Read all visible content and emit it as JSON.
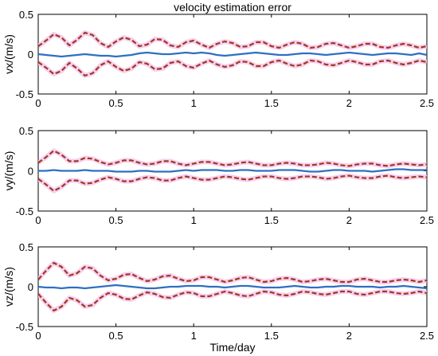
{
  "figure": {
    "title": "velocity estimation error",
    "xlabel": "Time/day"
  },
  "colors": {
    "estimate": "#2e6fc2",
    "bound": "#a0381c",
    "bound_halo": "#f4c9ef",
    "axis": "#000000"
  },
  "chart_data": [
    {
      "type": "line",
      "ylabel": "vx/(m/s)",
      "xlim": [
        0,
        2.5
      ],
      "ylim": [
        -0.5,
        0.5
      ],
      "xticks": [
        "0",
        "0.5",
        "1",
        "1.5",
        "2",
        "2.5"
      ],
      "yticks": [
        "0.5",
        "0",
        "-0.5"
      ],
      "grid": false,
      "x": [
        0,
        0.05,
        0.1,
        0.15,
        0.2,
        0.25,
        0.3,
        0.35,
        0.4,
        0.45,
        0.5,
        0.55,
        0.6,
        0.65,
        0.7,
        0.75,
        0.8,
        0.85,
        0.9,
        0.95,
        1.0,
        1.05,
        1.1,
        1.15,
        1.2,
        1.25,
        1.3,
        1.35,
        1.4,
        1.45,
        1.5,
        1.55,
        1.6,
        1.65,
        1.7,
        1.75,
        1.8,
        1.85,
        1.9,
        1.95,
        2.0,
        2.05,
        2.1,
        2.15,
        2.2,
        2.25,
        2.3,
        2.35,
        2.4,
        2.45,
        2.5
      ],
      "series": [
        {
          "role": "estimate",
          "values": [
            0.0,
            -0.01,
            -0.02,
            -0.03,
            -0.02,
            -0.01,
            0.0,
            -0.01,
            -0.02,
            -0.02,
            -0.03,
            -0.02,
            -0.01,
            0.01,
            0.02,
            0.01,
            0.0,
            0.0,
            0.01,
            0.02,
            0.01,
            0.02,
            0.01,
            -0.01,
            -0.02,
            -0.01,
            0.0,
            0.01,
            0.02,
            0.01,
            0.0,
            -0.01,
            -0.01,
            0.0,
            0.01,
            0.01,
            0.0,
            -0.01,
            0.0,
            0.01,
            0.02,
            0.01,
            0.0,
            -0.01,
            0.0,
            0.01,
            0.01,
            0.0,
            -0.01,
            0.01,
            -0.01
          ]
        },
        {
          "role": "upper-bound",
          "values": [
            0.1,
            0.17,
            0.25,
            0.21,
            0.11,
            0.18,
            0.27,
            0.24,
            0.14,
            0.09,
            0.16,
            0.21,
            0.18,
            0.1,
            0.12,
            0.19,
            0.18,
            0.11,
            0.09,
            0.15,
            0.17,
            0.12,
            0.08,
            0.13,
            0.16,
            0.14,
            0.09,
            0.1,
            0.15,
            0.15,
            0.1,
            0.08,
            0.12,
            0.15,
            0.13,
            0.08,
            0.09,
            0.13,
            0.14,
            0.11,
            0.08,
            0.1,
            0.13,
            0.13,
            0.09,
            0.08,
            0.11,
            0.13,
            0.11,
            0.08,
            0.1
          ]
        },
        {
          "role": "lower-bound",
          "values": [
            -0.1,
            -0.17,
            -0.25,
            -0.21,
            -0.11,
            -0.18,
            -0.27,
            -0.24,
            -0.14,
            -0.09,
            -0.16,
            -0.21,
            -0.18,
            -0.1,
            -0.12,
            -0.19,
            -0.18,
            -0.11,
            -0.09,
            -0.15,
            -0.17,
            -0.12,
            -0.08,
            -0.13,
            -0.16,
            -0.14,
            -0.09,
            -0.1,
            -0.15,
            -0.15,
            -0.1,
            -0.08,
            -0.12,
            -0.15,
            -0.13,
            -0.08,
            -0.09,
            -0.13,
            -0.14,
            -0.11,
            -0.08,
            -0.1,
            -0.13,
            -0.13,
            -0.09,
            -0.08,
            -0.11,
            -0.13,
            -0.11,
            -0.08,
            -0.1
          ]
        }
      ]
    },
    {
      "type": "line",
      "ylabel": "vy/(m/s)",
      "xlim": [
        0,
        2.5
      ],
      "ylim": [
        -0.5,
        0.5
      ],
      "xticks": [
        "0",
        "0.5",
        "1",
        "1.5",
        "2",
        "2.5"
      ],
      "yticks": [
        "0.5",
        "0",
        "-0.5"
      ],
      "grid": false,
      "x": [
        0,
        0.05,
        0.1,
        0.15,
        0.2,
        0.25,
        0.3,
        0.35,
        0.4,
        0.45,
        0.5,
        0.55,
        0.6,
        0.65,
        0.7,
        0.75,
        0.8,
        0.85,
        0.9,
        0.95,
        1.0,
        1.05,
        1.1,
        1.15,
        1.2,
        1.25,
        1.3,
        1.35,
        1.4,
        1.45,
        1.5,
        1.55,
        1.6,
        1.65,
        1.7,
        1.75,
        1.8,
        1.85,
        1.9,
        1.95,
        2.0,
        2.05,
        2.1,
        2.15,
        2.2,
        2.25,
        2.3,
        2.35,
        2.4,
        2.45,
        2.5
      ],
      "series": [
        {
          "role": "estimate",
          "values": [
            0.0,
            0.0,
            0.01,
            0.0,
            0.0,
            0.0,
            0.01,
            0.0,
            0.0,
            0.0,
            -0.01,
            -0.01,
            -0.01,
            0.0,
            0.0,
            -0.01,
            -0.01,
            -0.01,
            0.0,
            0.01,
            0.0,
            0.01,
            0.01,
            0.01,
            0.0,
            0.0,
            0.01,
            0.01,
            0.0,
            0.0,
            0.0,
            0.01,
            0.01,
            0.01,
            0.0,
            -0.01,
            -0.01,
            0.0,
            0.01,
            0.01,
            0.0,
            0.0,
            0.0,
            -0.01,
            0.0,
            0.01,
            0.02,
            0.02,
            0.01,
            0.01,
            0.01
          ]
        },
        {
          "role": "upper-bound",
          "values": [
            0.1,
            0.17,
            0.25,
            0.2,
            0.12,
            0.12,
            0.16,
            0.15,
            0.11,
            0.08,
            0.1,
            0.13,
            0.13,
            0.1,
            0.08,
            0.09,
            0.12,
            0.12,
            0.09,
            0.07,
            0.09,
            0.11,
            0.11,
            0.09,
            0.07,
            0.08,
            0.1,
            0.11,
            0.09,
            0.07,
            0.07,
            0.09,
            0.1,
            0.09,
            0.07,
            0.07,
            0.08,
            0.1,
            0.09,
            0.07,
            0.06,
            0.08,
            0.09,
            0.09,
            0.07,
            0.06,
            0.08,
            0.09,
            0.08,
            0.07,
            0.08
          ]
        },
        {
          "role": "lower-bound",
          "values": [
            -0.1,
            -0.17,
            -0.25,
            -0.2,
            -0.12,
            -0.12,
            -0.16,
            -0.15,
            -0.11,
            -0.08,
            -0.1,
            -0.13,
            -0.13,
            -0.1,
            -0.08,
            -0.09,
            -0.12,
            -0.12,
            -0.09,
            -0.07,
            -0.09,
            -0.11,
            -0.11,
            -0.09,
            -0.07,
            -0.08,
            -0.1,
            -0.11,
            -0.09,
            -0.07,
            -0.07,
            -0.09,
            -0.1,
            -0.09,
            -0.07,
            -0.07,
            -0.08,
            -0.1,
            -0.09,
            -0.07,
            -0.06,
            -0.08,
            -0.09,
            -0.09,
            -0.07,
            -0.06,
            -0.08,
            -0.09,
            -0.08,
            -0.07,
            -0.08
          ]
        }
      ]
    },
    {
      "type": "line",
      "ylabel": "vz/(m/s)",
      "xlim": [
        0,
        2.5
      ],
      "ylim": [
        -0.5,
        0.5
      ],
      "xticks": [
        "0",
        "0.5",
        "1",
        "1.5",
        "2",
        "2.5"
      ],
      "yticks": [
        "0.5",
        "0",
        "-0.5"
      ],
      "grid": false,
      "x": [
        0,
        0.05,
        0.1,
        0.15,
        0.2,
        0.25,
        0.3,
        0.35,
        0.4,
        0.45,
        0.5,
        0.55,
        0.6,
        0.65,
        0.7,
        0.75,
        0.8,
        0.85,
        0.9,
        0.95,
        1.0,
        1.05,
        1.1,
        1.15,
        1.2,
        1.25,
        1.3,
        1.35,
        1.4,
        1.45,
        1.5,
        1.55,
        1.6,
        1.65,
        1.7,
        1.75,
        1.8,
        1.85,
        1.9,
        1.95,
        2.0,
        2.05,
        2.1,
        2.15,
        2.2,
        2.25,
        2.3,
        2.35,
        2.4,
        2.45,
        2.5
      ],
      "series": [
        {
          "role": "estimate",
          "values": [
            0.0,
            -0.01,
            -0.01,
            -0.02,
            -0.01,
            -0.01,
            -0.02,
            -0.01,
            0.0,
            0.01,
            0.02,
            0.01,
            0.0,
            -0.01,
            -0.02,
            -0.02,
            -0.01,
            0.0,
            0.0,
            0.01,
            0.01,
            0.01,
            0.0,
            0.0,
            -0.01,
            0.0,
            0.01,
            0.01,
            0.0,
            -0.01,
            -0.01,
            -0.01,
            0.0,
            0.01,
            0.0,
            -0.01,
            -0.01,
            0.0,
            0.0,
            0.01,
            0.01,
            0.0,
            0.0,
            0.0,
            -0.01,
            0.0,
            0.0,
            0.01,
            0.0,
            -0.01,
            -0.02
          ]
        },
        {
          "role": "upper-bound",
          "values": [
            0.09,
            0.2,
            0.3,
            0.25,
            0.14,
            0.17,
            0.25,
            0.23,
            0.14,
            0.08,
            0.1,
            0.15,
            0.16,
            0.11,
            0.07,
            0.09,
            0.13,
            0.14,
            0.1,
            0.07,
            0.08,
            0.12,
            0.12,
            0.09,
            0.06,
            0.08,
            0.11,
            0.12,
            0.09,
            0.06,
            0.07,
            0.1,
            0.11,
            0.09,
            0.06,
            0.07,
            0.09,
            0.1,
            0.08,
            0.06,
            0.06,
            0.09,
            0.1,
            0.08,
            0.06,
            0.06,
            0.08,
            0.09,
            0.08,
            0.06,
            0.08
          ]
        },
        {
          "role": "lower-bound",
          "values": [
            -0.09,
            -0.2,
            -0.3,
            -0.25,
            -0.14,
            -0.17,
            -0.25,
            -0.23,
            -0.14,
            -0.08,
            -0.1,
            -0.15,
            -0.16,
            -0.11,
            -0.07,
            -0.09,
            -0.13,
            -0.14,
            -0.1,
            -0.07,
            -0.08,
            -0.12,
            -0.12,
            -0.09,
            -0.06,
            -0.08,
            -0.11,
            -0.12,
            -0.09,
            -0.06,
            -0.07,
            -0.1,
            -0.11,
            -0.09,
            -0.06,
            -0.07,
            -0.09,
            -0.1,
            -0.08,
            -0.06,
            -0.06,
            -0.09,
            -0.1,
            -0.08,
            -0.06,
            -0.06,
            -0.08,
            -0.09,
            -0.08,
            -0.06,
            -0.08
          ]
        }
      ]
    }
  ]
}
